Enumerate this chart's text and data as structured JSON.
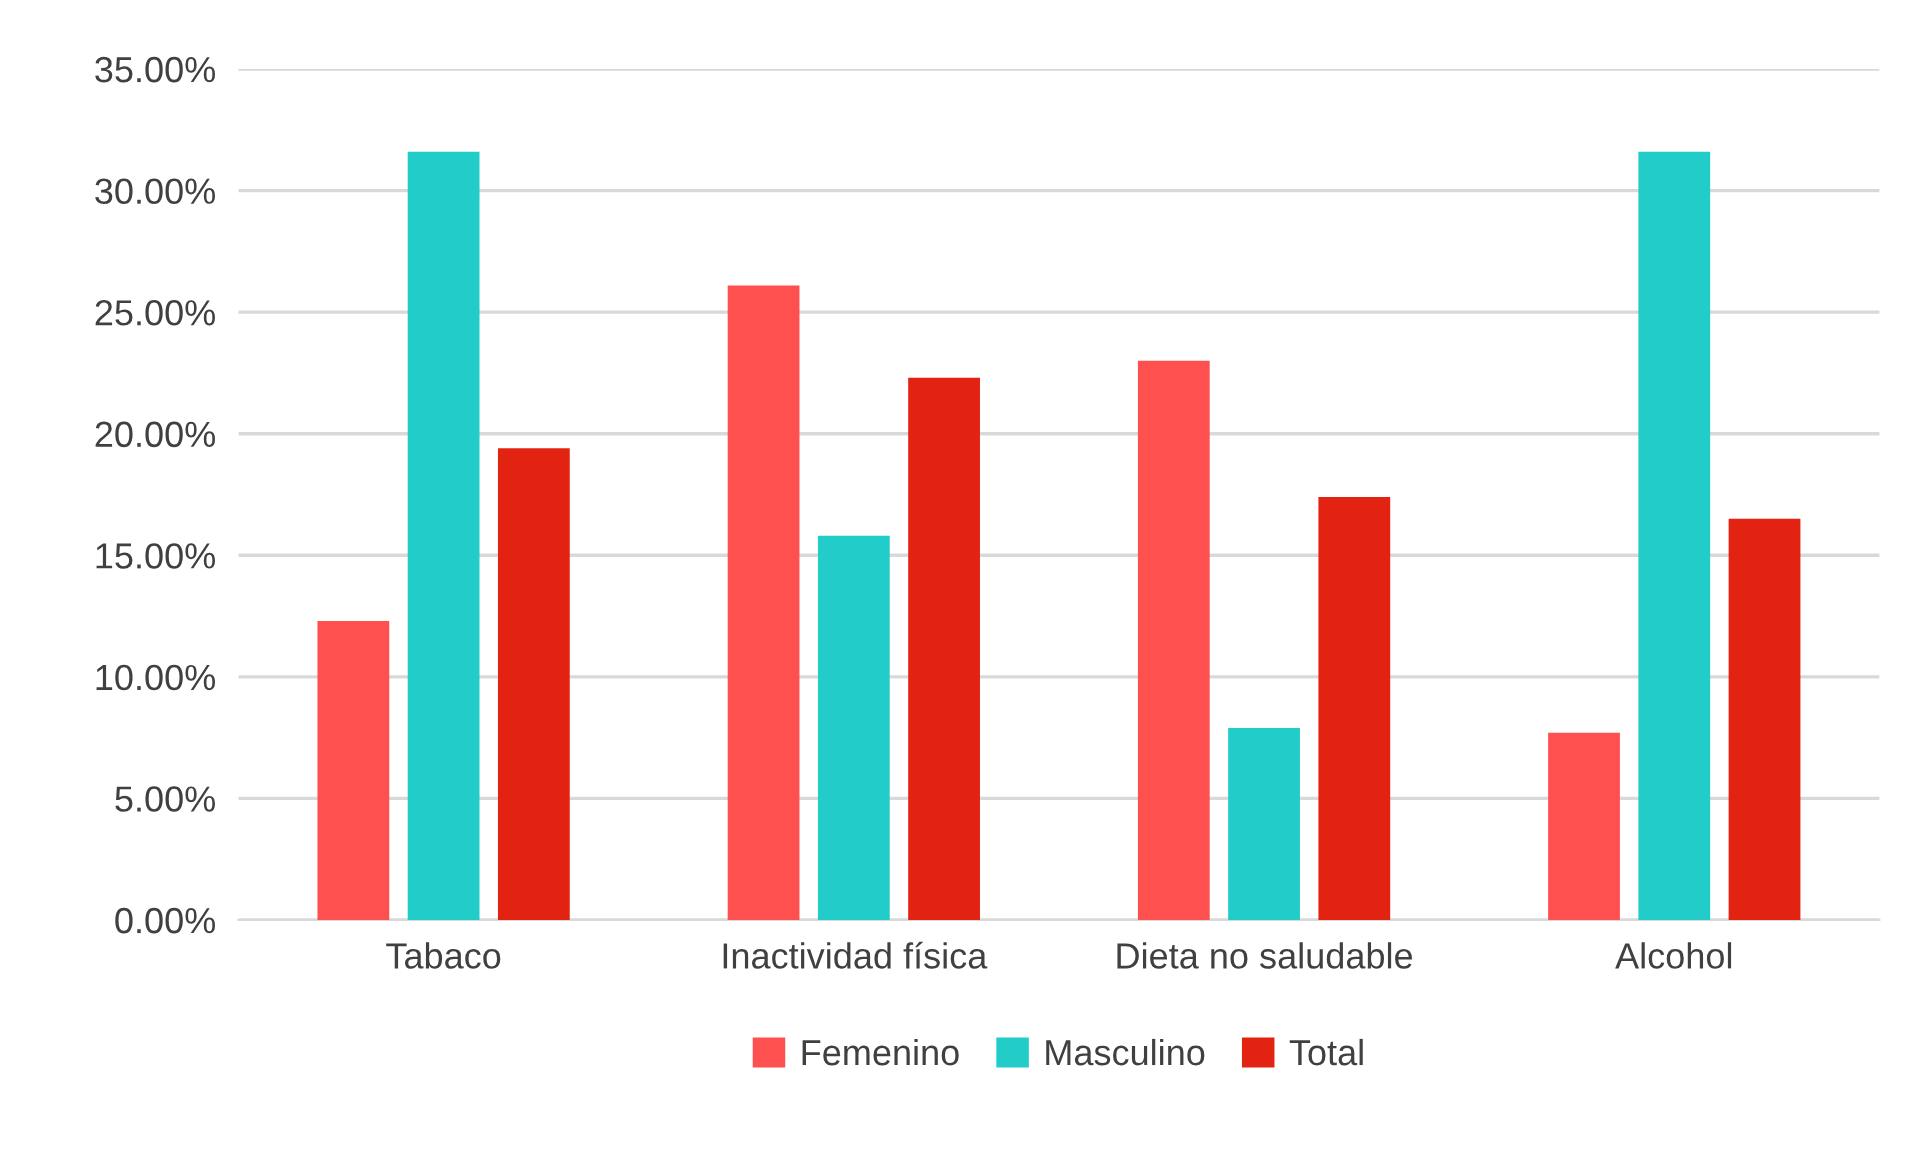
{
  "chart_data": {
    "type": "bar",
    "categories": [
      "Tabaco",
      "Inactividad física",
      "Dieta no saludable",
      "Alcohol"
    ],
    "series": [
      {
        "name": "Femenino",
        "color": "#ff5050",
        "values": [
          12.3,
          26.1,
          23.0,
          7.7
        ]
      },
      {
        "name": "Masculino",
        "color": "#22ccc8",
        "values": [
          31.6,
          15.8,
          7.9,
          31.6
        ]
      },
      {
        "name": "Total",
        "color": "#e32312",
        "values": [
          19.4,
          22.3,
          17.4,
          16.5
        ]
      }
    ],
    "ylim": [
      0,
      35
    ],
    "yticks": [
      {
        "value": 0,
        "label": "0.00%"
      },
      {
        "value": 5,
        "label": "5.00%"
      },
      {
        "value": 10,
        "label": "10.00%"
      },
      {
        "value": 15,
        "label": "15.00%"
      },
      {
        "value": 20,
        "label": "20.00%"
      },
      {
        "value": 25,
        "label": "25.00%"
      },
      {
        "value": 30,
        "label": "30.00%"
      },
      {
        "value": 35,
        "label": "35.00%"
      }
    ],
    "grid": "y",
    "legend": "bottom"
  }
}
